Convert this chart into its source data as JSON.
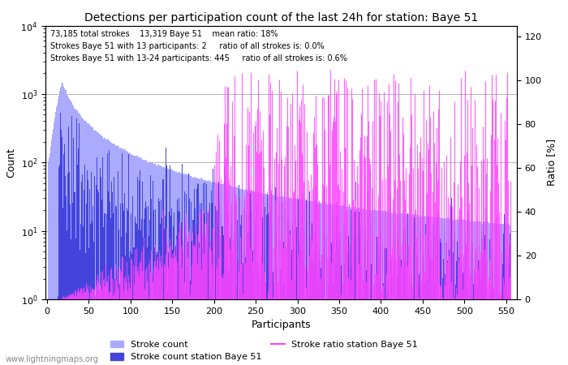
{
  "title": "Detections per participation count of the last 24h for station: Baye 51",
  "xlabel": "Participants",
  "ylabel_left": "Count",
  "ylabel_right": "Ratio [%]",
  "annotation_lines": [
    "73,185 total strokes    13,319 Baye 51    mean ratio: 18%",
    "Strokes Baye 51 with 13 participants: 2     ratio of all strokes is: 0.0%",
    "Strokes Baye 51 with 13-24 participants: 445     ratio of all strokes is: 0.6%"
  ],
  "x_max": 555,
  "ylim_right": [
    0,
    125
  ],
  "right_ticks": [
    0,
    20,
    40,
    60,
    80,
    100,
    120
  ],
  "color_stroke_all": "#aaaaff",
  "color_stroke_station": "#4444dd",
  "color_ratio": "#ff44ff",
  "watermark": "www.lightningmaps.org"
}
